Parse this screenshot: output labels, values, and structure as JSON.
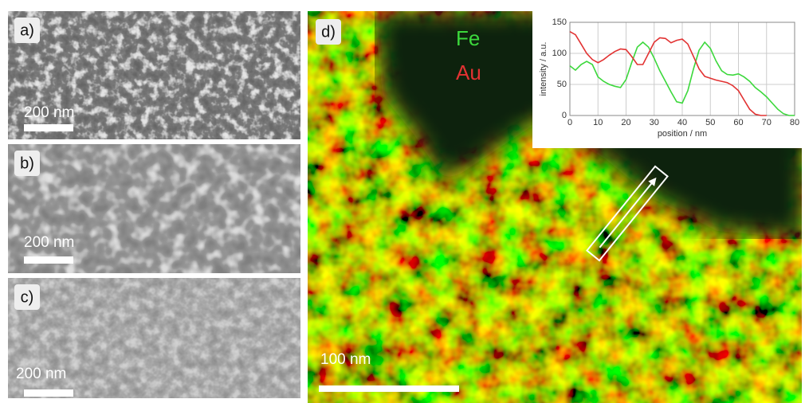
{
  "panels": [
    {
      "label": "a)",
      "scale_bar": "200 nm"
    },
    {
      "label": "b)",
      "scale_bar": "200 nm"
    },
    {
      "label": "c)",
      "scale_bar": "200 nm"
    },
    {
      "label": "d)",
      "scale_bar": "100 nm"
    }
  ],
  "chart_data": {
    "type": "line",
    "xlabel": "position / nm",
    "ylabel": "intensity / a.u.",
    "x": [
      0,
      2,
      4,
      6,
      8,
      10,
      12,
      14,
      16,
      18,
      20,
      22,
      24,
      26,
      28,
      30,
      32,
      34,
      36,
      38,
      40,
      42,
      44,
      46,
      48,
      50,
      52,
      54,
      56,
      58,
      60,
      62,
      64,
      66,
      68,
      70,
      72,
      74,
      76,
      78,
      80
    ],
    "series": [
      {
        "name": "Fe",
        "color": "#3cd83c",
        "values": [
          80,
          73,
          82,
          87,
          82,
          62,
          55,
          50,
          47,
          45,
          58,
          85,
          110,
          118,
          110,
          92,
          72,
          55,
          38,
          22,
          20,
          40,
          75,
          105,
          118,
          108,
          88,
          72,
          66,
          65,
          67,
          62,
          55,
          45,
          38,
          30,
          20,
          10,
          3,
          0,
          0
        ]
      },
      {
        "name": "Au",
        "color": "#e23232",
        "values": [
          135,
          130,
          115,
          100,
          90,
          85,
          90,
          97,
          103,
          107,
          106,
          95,
          82,
          82,
          100,
          118,
          125,
          124,
          117,
          121,
          123,
          115,
          95,
          75,
          63,
          60,
          57,
          55,
          53,
          48,
          40,
          25,
          10,
          2,
          0,
          0,
          null,
          null,
          null,
          null,
          null
        ]
      }
    ],
    "xlim": [
      0,
      80
    ],
    "xticks": [
      0,
      10,
      20,
      30,
      40,
      50,
      60,
      70,
      80
    ],
    "ylim": [
      0,
      150
    ],
    "yticks": [
      0,
      50,
      100,
      150
    ],
    "grid": true
  }
}
